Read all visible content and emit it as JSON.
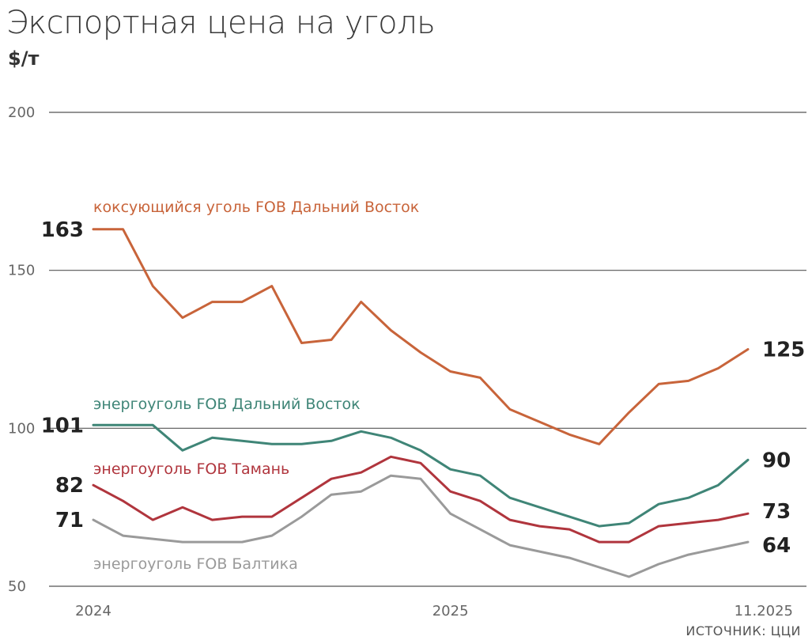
{
  "header": {
    "title": "Экспортная цена на уголь",
    "unit": "$/т"
  },
  "source": "ИСТОЧНИК: ЦЦИ",
  "chart_data": {
    "type": "line",
    "title": "Экспортная цена на уголь",
    "ylabel": "$/т",
    "ylim": [
      50,
      200
    ],
    "yticks": [
      50,
      100,
      150,
      200
    ],
    "xticks": [
      {
        "label": "2024",
        "index": 0
      },
      {
        "label": "2025",
        "index": 12
      },
      {
        "label": "11.2025",
        "index": 22
      }
    ],
    "grid": true,
    "series": [
      {
        "name": "коксующийся уголь FOB Дальний Восток",
        "color": "#c8643a",
        "start_label": "163",
        "end_label": "125",
        "values": [
          163,
          163,
          145,
          135,
          140,
          140,
          145,
          127,
          128,
          140,
          131,
          124,
          118,
          116,
          106,
          102,
          98,
          95,
          105,
          114,
          115,
          119,
          125
        ]
      },
      {
        "name": "энергоуголь FOB Дальний Восток",
        "color": "#3f8577",
        "start_label": "101",
        "end_label": "90",
        "values": [
          101,
          101,
          101,
          93,
          97,
          96,
          95,
          95,
          96,
          99,
          97,
          93,
          87,
          85,
          78,
          75,
          72,
          69,
          70,
          76,
          78,
          82,
          90
        ]
      },
      {
        "name": "энергоуголь FOB Тамань",
        "color": "#b0353d",
        "start_label": "82",
        "end_label": "73",
        "values": [
          82,
          77,
          71,
          75,
          71,
          72,
          72,
          78,
          84,
          86,
          91,
          89,
          80,
          77,
          71,
          69,
          68,
          64,
          64,
          69,
          70,
          71,
          73
        ]
      },
      {
        "name": "энергоуголь FOB Балтика",
        "color": "#9a9a9a",
        "start_label": "71",
        "end_label": "64",
        "values": [
          71,
          66,
          65,
          64,
          64,
          64,
          66,
          72,
          79,
          80,
          85,
          84,
          73,
          68,
          63,
          61,
          59,
          56,
          53,
          57,
          60,
          62,
          64
        ]
      }
    ]
  }
}
